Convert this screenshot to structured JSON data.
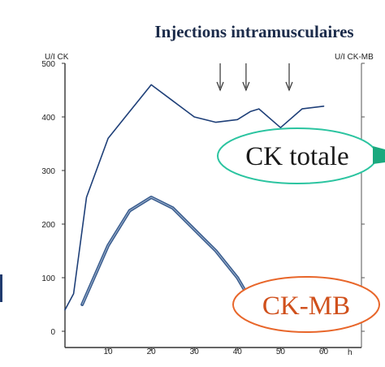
{
  "chart_data": {
    "type": "line",
    "title": "Injections intramusculaires",
    "y_unit_left": "U/I CK",
    "y_unit_right": "U/I CK-MB",
    "x_unit": "h",
    "xlim": [
      0,
      65
    ],
    "ylim": [
      0,
      500
    ],
    "x_ticks": [
      10,
      20,
      30,
      40,
      50,
      60
    ],
    "y_ticks": [
      0,
      100,
      200,
      300,
      400,
      500
    ],
    "grid": false,
    "series": [
      {
        "name": "CK totale",
        "color": "#1e3f78",
        "x": [
          0,
          2,
          5,
          10,
          15,
          20,
          25,
          30,
          35,
          40,
          43,
          45,
          50,
          55,
          60
        ],
        "y": [
          40,
          70,
          250,
          360,
          410,
          460,
          430,
          400,
          390,
          395,
          410,
          415,
          380,
          415,
          420
        ]
      },
      {
        "name": "CK-MB",
        "color": "#3a5d8f",
        "x": [
          4,
          10,
          15,
          20,
          25,
          30,
          35,
          40,
          44
        ],
        "y": [
          50,
          160,
          225,
          250,
          230,
          190,
          150,
          100,
          45
        ]
      }
    ],
    "injection_arrows_x": [
      36,
      42,
      52
    ],
    "annotations": [
      {
        "text": "CK totale",
        "color": "#2bc4a0"
      },
      {
        "text": "CK-MB",
        "color": "#e8662a"
      }
    ]
  }
}
